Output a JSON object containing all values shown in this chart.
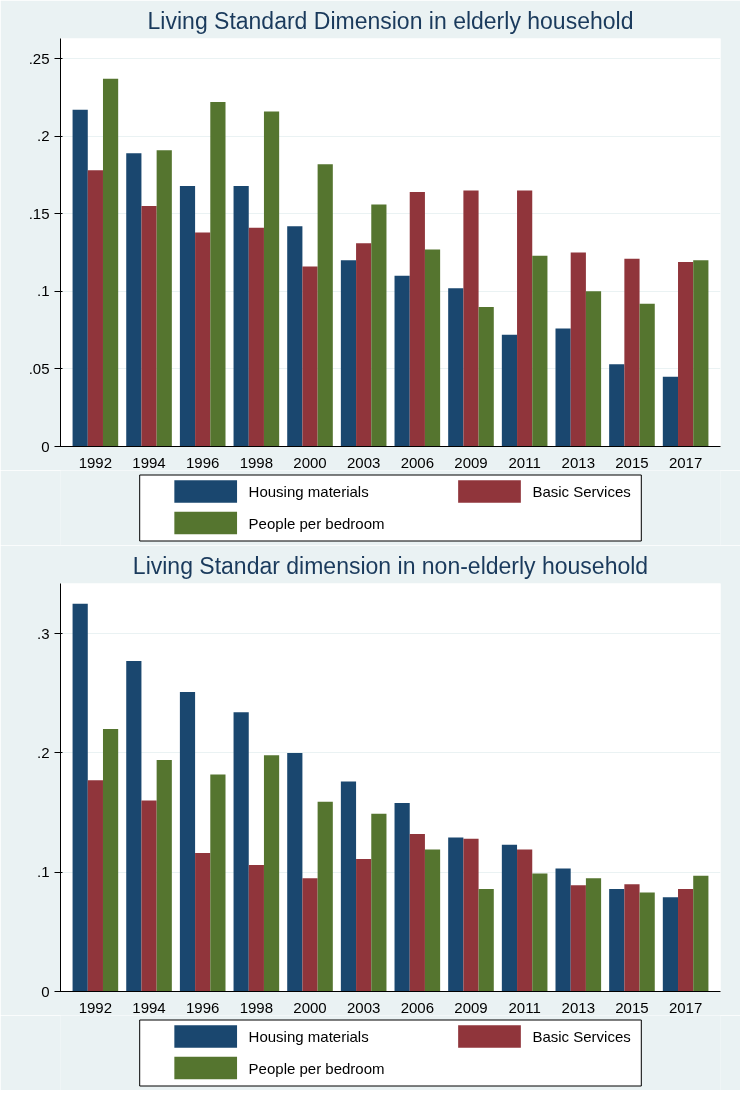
{
  "chart_data": [
    {
      "type": "bar",
      "title": "Living Standard Dimension in elderly household",
      "categories": [
        "1992",
        "1994",
        "1996",
        "1998",
        "2000",
        "2003",
        "2006",
        "2009",
        "2011",
        "2013",
        "2015",
        "2017"
      ],
      "series": [
        {
          "name": "Housing materials",
          "color": "#1a476f",
          "values": [
            0.217,
            0.189,
            0.168,
            0.168,
            0.142,
            0.12,
            0.11,
            0.102,
            0.072,
            0.076,
            0.053,
            0.045
          ]
        },
        {
          "name": "Basic Services",
          "color": "#90353b",
          "values": [
            0.178,
            0.155,
            0.138,
            0.141,
            0.116,
            0.131,
            0.164,
            0.165,
            0.165,
            0.125,
            0.121,
            0.119
          ]
        },
        {
          "name": "People per bedroom",
          "color": "#55752f",
          "values": [
            0.237,
            0.191,
            0.222,
            0.216,
            0.182,
            0.156,
            0.127,
            0.09,
            0.123,
            0.1,
            0.092,
            0.12
          ]
        }
      ],
      "ylim": [
        0,
        0.263
      ],
      "yticks": [
        0,
        {
          "value": 0.05,
          "label": ".05"
        },
        {
          "value": 0.1,
          "label": ".1"
        },
        {
          "value": 0.15,
          "label": ".15"
        },
        {
          "value": 0.2,
          "label": ".2"
        },
        {
          "value": 0.25,
          "label": ".25"
        }
      ],
      "grid": "y",
      "legend": "bottom"
    },
    {
      "type": "bar",
      "title": "Living Standar dimension in non-elderly household",
      "categories": [
        "1992",
        "1994",
        "1996",
        "1998",
        "2000",
        "2003",
        "2006",
        "2009",
        "2011",
        "2013",
        "2015",
        "2017"
      ],
      "series": [
        {
          "name": "Housing materials",
          "color": "#1a476f",
          "values": [
            0.325,
            0.277,
            0.251,
            0.234,
            0.2,
            0.176,
            0.158,
            0.129,
            0.123,
            0.103,
            0.086,
            0.079
          ]
        },
        {
          "name": "Basic Services",
          "color": "#90353b",
          "values": [
            0.177,
            0.16,
            0.116,
            0.106,
            0.095,
            0.111,
            0.132,
            0.128,
            0.119,
            0.089,
            0.09,
            0.086
          ]
        },
        {
          "name": "People per bedroom",
          "color": "#55752f",
          "values": [
            0.22,
            0.194,
            0.182,
            0.198,
            0.159,
            0.149,
            0.119,
            0.086,
            0.099,
            0.095,
            0.083,
            0.097
          ]
        }
      ],
      "ylim": [
        0,
        0.342
      ],
      "yticks": [
        0,
        {
          "value": 0.1,
          "label": ".1"
        },
        {
          "value": 0.2,
          "label": ".2"
        },
        {
          "value": 0.3,
          "label": ".3"
        }
      ],
      "grid": "y",
      "legend": "bottom"
    }
  ]
}
